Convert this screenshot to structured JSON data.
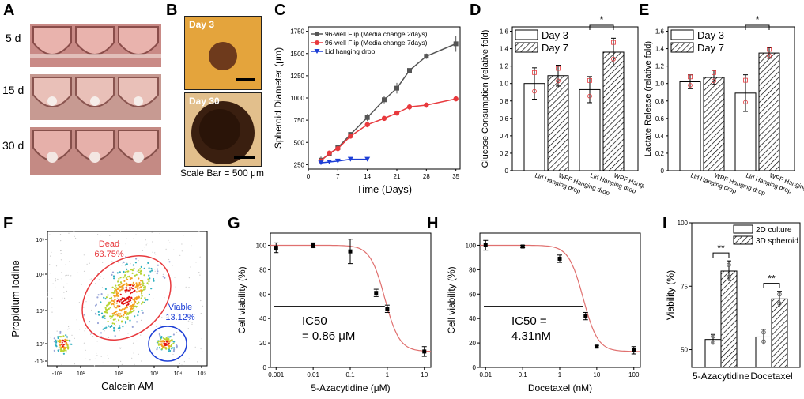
{
  "panel_labels": {
    "A": "A",
    "B": "B",
    "C": "C",
    "D": "D",
    "E": "E",
    "F": "F",
    "G": "G",
    "H": "H",
    "I": "I"
  },
  "panelA": {
    "rows": [
      "5 d",
      "15 d",
      "30 d"
    ]
  },
  "panelB": {
    "top_label": "Day 3",
    "bottom_label": "Day 30",
    "scale": "Scale Bar = 500 μm"
  },
  "colors": {
    "gray": "#555555",
    "red": "#e8393d",
    "blue": "#1d3fd6",
    "fit": "#e0706f"
  },
  "chart_data": [
    {
      "id": "C",
      "type": "line",
      "xlabel": "Time (Days)",
      "ylabel": "Spheroid Diameter (μm)",
      "xlim": [
        0,
        36
      ],
      "ylim": [
        200,
        1800
      ],
      "xticks": [
        0,
        7,
        14,
        21,
        28,
        35
      ],
      "xtick_labels": [
        "0",
        "7",
        "14",
        "21",
        "28",
        "35"
      ],
      "yticks": [
        250,
        500,
        750,
        1000,
        1250,
        1500,
        1750
      ],
      "legend": [
        "96-well Flip (Media change 2days)",
        "96-well Flip (Media change 7days)",
        "Lid hanging drop"
      ],
      "series": [
        {
          "name": "96-well Flip (Media change 2days)",
          "x": [
            3,
            5,
            7,
            10,
            14,
            18,
            21,
            24,
            28,
            35
          ],
          "y": [
            300,
            370,
            440,
            590,
            780,
            980,
            1110,
            1310,
            1470,
            1610
          ],
          "err": [
            40,
            20,
            20,
            25,
            40,
            40,
            60,
            20,
            30,
            90
          ]
        },
        {
          "name": "96-well Flip (Media change 7days)",
          "x": [
            3,
            5,
            7,
            10,
            14,
            18,
            21,
            24,
            28,
            35
          ],
          "y": [
            290,
            380,
            430,
            570,
            700,
            770,
            830,
            900,
            920,
            990
          ],
          "err": [
            30,
            20,
            20,
            20,
            30,
            20,
            20,
            35,
            30,
            10
          ]
        },
        {
          "name": "Lid hanging drop",
          "x": [
            3,
            5,
            7,
            10,
            14
          ],
          "y": [
            270,
            280,
            290,
            310,
            310
          ],
          "err": [
            10,
            10,
            10,
            10,
            10
          ]
        }
      ]
    },
    {
      "id": "D",
      "type": "bar",
      "ylabel": "Glucose Consumption (relative fold)",
      "ylim": [
        0,
        1.65
      ],
      "yticks": [
        0,
        0.2,
        0.4,
        0.6,
        0.8,
        1.0,
        1.2,
        1.4,
        1.6
      ],
      "ytick_labels": [
        "0",
        "0.2",
        "0.4",
        "0.6",
        "0.8",
        "1.0",
        "1.2",
        "1.4",
        "1.6"
      ],
      "categories": [
        "Lid Hanging drop",
        "WPF Hanging drop"
      ],
      "series": [
        {
          "name": "Day 3",
          "values": [
            1.0,
            0.93
          ],
          "err": [
            0.18,
            0.15
          ]
        },
        {
          "name": "Day 7",
          "values": [
            1.09,
            1.36
          ],
          "err": [
            0.12,
            0.16
          ]
        }
      ],
      "significance": "*"
    },
    {
      "id": "E",
      "type": "bar",
      "ylabel": "Lactate Release (relative fold)",
      "ylim": [
        0,
        1.65
      ],
      "yticks": [
        0,
        0.2,
        0.4,
        0.6,
        0.8,
        1.0,
        1.2,
        1.4,
        1.6
      ],
      "ytick_labels": [
        "0",
        "0.2",
        "0.4",
        "0.6",
        "0.8",
        "1.0",
        "1.2",
        "1.4",
        "1.6"
      ],
      "categories": [
        "Lid Hanging drop",
        "WPF Hanging drop"
      ],
      "series": [
        {
          "name": "Day 3",
          "values": [
            1.02,
            0.89
          ],
          "err": [
            0.08,
            0.21
          ]
        },
        {
          "name": "Day 7",
          "values": [
            1.07,
            1.35
          ],
          "err": [
            0.08,
            0.06
          ]
        }
      ],
      "significance": "*"
    },
    {
      "id": "F",
      "type": "scatter",
      "xlabel": "Calcein AM",
      "ylabel": "Propidium Iodine",
      "xtick_labels": [
        "-10¹",
        "10¹",
        "10²",
        "10³",
        "10⁴",
        "10⁵"
      ],
      "ytick_labels": [
        "-10¹",
        "10²",
        "10³",
        "10⁴",
        "10⁵"
      ],
      "gates": [
        {
          "name": "Dead",
          "percent": "63.75%"
        },
        {
          "name": "Viable",
          "percent": "13.12%"
        }
      ]
    },
    {
      "id": "G",
      "type": "line",
      "xlabel": "5-Azacytidine (μM)",
      "ylabel": "Cell viability (%)",
      "xscale": "log",
      "xlim": [
        0.0007,
        15
      ],
      "ylim": [
        0,
        110
      ],
      "xtick_labels": [
        "0.001",
        "0.01",
        "0.1",
        "1",
        "10"
      ],
      "yticks": [
        0,
        20,
        40,
        60,
        80,
        100
      ],
      "x": [
        0.001,
        0.01,
        0.1,
        0.5,
        1,
        10
      ],
      "y": [
        98,
        100,
        95,
        61,
        48,
        13
      ],
      "err": [
        4,
        2,
        10,
        3,
        3,
        4
      ],
      "ic50_label": "IC50",
      "ic50_value": "= 0.86 μM",
      "ic50": 0.86
    },
    {
      "id": "H",
      "type": "line",
      "xlabel": "Docetaxel (nM)",
      "ylabel": "Cell viability (%)",
      "xscale": "log",
      "xlim": [
        0.007,
        150
      ],
      "ylim": [
        0,
        110
      ],
      "xtick_labels": [
        "0.01",
        "0.1",
        "1",
        "10",
        "100"
      ],
      "yticks": [
        0,
        20,
        40,
        60,
        80,
        100
      ],
      "x": [
        0.01,
        0.1,
        1,
        5,
        10,
        100
      ],
      "y": [
        100,
        99,
        89,
        42,
        17,
        14
      ],
      "err": [
        4,
        1,
        3,
        3,
        1,
        3
      ],
      "ic50_label": "IC50 =",
      "ic50_value": "4.31nM",
      "ic50": 4.31
    },
    {
      "id": "I",
      "type": "bar",
      "ylabel": "Viability (%)",
      "ylim": [
        43,
        100
      ],
      "yticks": [
        50,
        75,
        100
      ],
      "categories": [
        "5-Azacytidine",
        "Docetaxel"
      ],
      "series": [
        {
          "name": "2D culture",
          "values": [
            54,
            55
          ],
          "err": [
            2,
            3
          ]
        },
        {
          "name": "3D spheroid",
          "values": [
            81,
            70
          ],
          "err": [
            4,
            3
          ]
        }
      ],
      "significance": "**"
    }
  ]
}
